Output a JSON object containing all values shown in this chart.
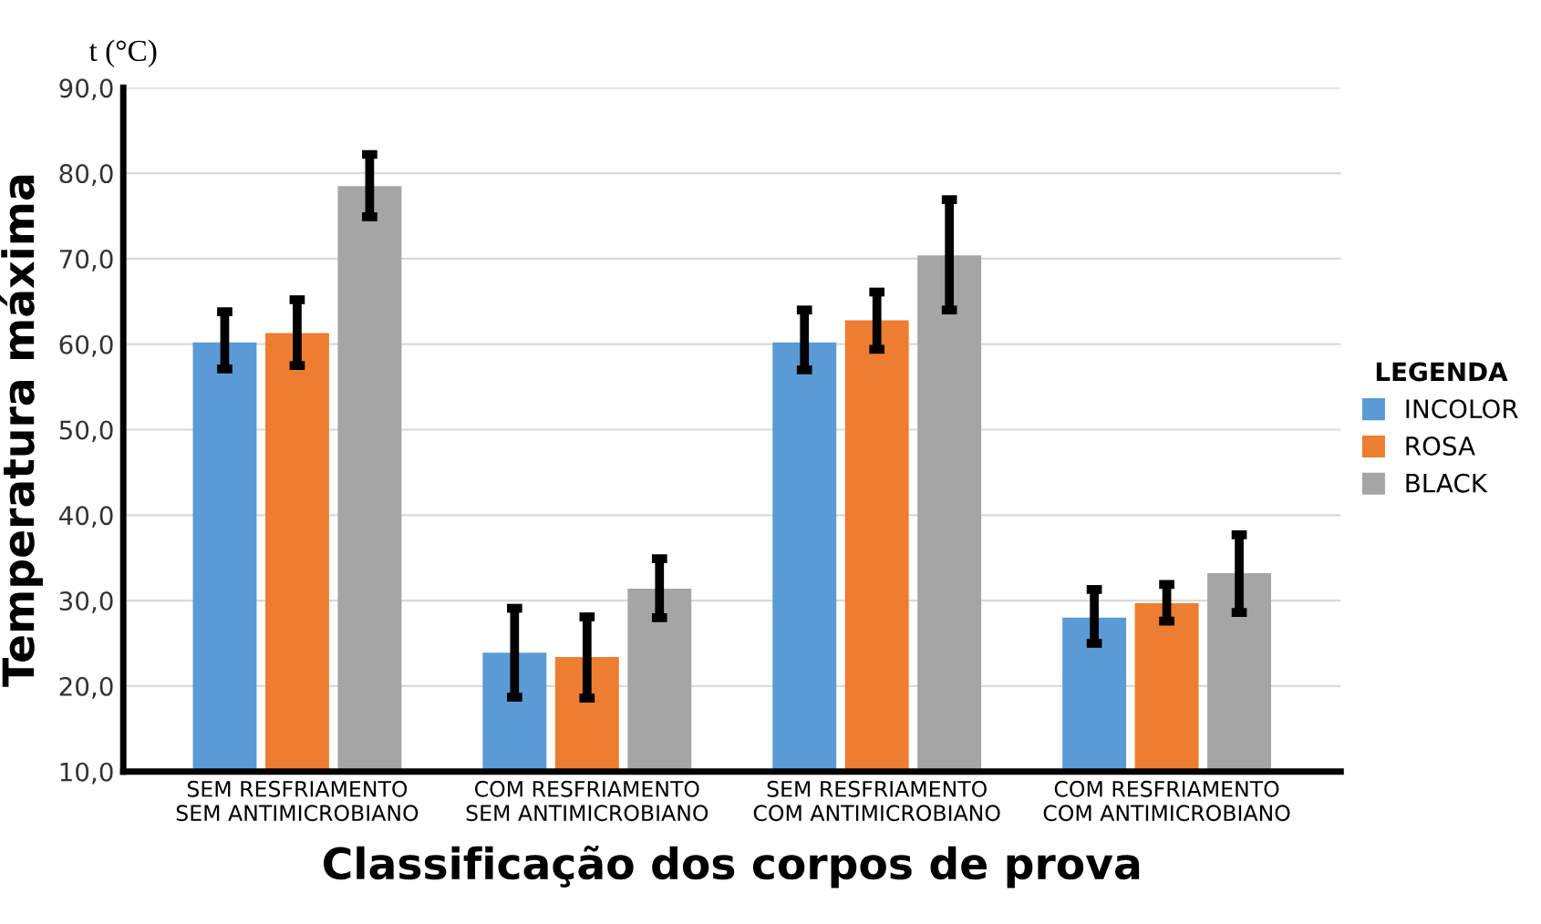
{
  "chart_data": {
    "type": "bar",
    "xlabel": "Classificação dos corpos de prova",
    "ylabel": "Temperatura máxima",
    "legend_title": "LEGENDA",
    "annotations": [
      "t (°C)"
    ],
    "categories": [
      "SEM RESFRIAMENTO\nSEM ANTIMICROBIANO",
      "COM RESFRIAMENTO\nSEM ANTIMICROBIANO",
      "SEM RESFRIAMENTO\nCOM ANTIMICROBIANO",
      "COM RESFRIAMENTO\nCOM ANTIMICROBIANO"
    ],
    "series": [
      {
        "name": "INCOLOR",
        "color": "#5b9bd5",
        "values": [
          60.2,
          23.9,
          60.2,
          28.0
        ],
        "errors": [
          [
            57.1,
            63.8
          ],
          [
            18.7,
            29.1
          ],
          [
            57.0,
            64.0
          ],
          [
            25.0,
            31.3
          ]
        ]
      },
      {
        "name": "ROSA",
        "color": "#ed7d31",
        "values": [
          61.3,
          23.4,
          62.8,
          29.7
        ],
        "errors": [
          [
            57.5,
            65.2
          ],
          [
            18.6,
            28.1
          ],
          [
            59.4,
            66.1
          ],
          [
            27.6,
            31.9
          ]
        ]
      },
      {
        "name": "BLACK",
        "color": "#a5a5a5",
        "values": [
          78.5,
          31.4,
          70.4,
          33.2
        ],
        "errors": [
          [
            74.9,
            82.2
          ],
          [
            28.0,
            34.9
          ],
          [
            64.0,
            76.9
          ],
          [
            28.6,
            37.7
          ]
        ]
      }
    ],
    "ylim": [
      10,
      90
    ],
    "yticks": [
      {
        "value": 10,
        "label": "10,0"
      },
      {
        "value": 20,
        "label": "20,0"
      },
      {
        "value": 30,
        "label": "30,0"
      },
      {
        "value": 40,
        "label": "40,0"
      },
      {
        "value": 50,
        "label": "50,0"
      },
      {
        "value": 60,
        "label": "60,0"
      },
      {
        "value": 70,
        "label": "70,0"
      },
      {
        "value": 80,
        "label": "80,0"
      },
      {
        "value": 90,
        "label": "90,0"
      }
    ],
    "grid": "y",
    "legend": "right"
  }
}
